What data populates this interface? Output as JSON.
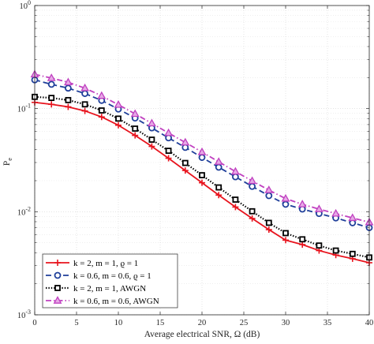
{
  "chart_data": {
    "type": "line",
    "xlabel": "Average electrical SNR,  Ω (dB)",
    "ylabel": "P",
    "ylabel_sub": "e",
    "xlim": [
      0,
      40
    ],
    "ylim": [
      0.001,
      1
    ],
    "yscale": "log",
    "grid": true,
    "legend_position": "bottom-left",
    "x_ticks": [
      0,
      5,
      10,
      15,
      20,
      25,
      30,
      35,
      40
    ],
    "y_ticks": [
      {
        "value": 1,
        "base": "10",
        "exp": "0"
      },
      {
        "value": 0.1,
        "base": "10",
        "exp": "-1"
      },
      {
        "value": 0.01,
        "base": "10",
        "exp": "-2"
      },
      {
        "value": 0.001,
        "base": "10",
        "exp": "-3"
      }
    ],
    "x": [
      0,
      2,
      4,
      6,
      8,
      10,
      12,
      14,
      16,
      18,
      20,
      22,
      24,
      26,
      28,
      30,
      32,
      34,
      36,
      38,
      40
    ],
    "series": [
      {
        "name": "k = 2, m = 1, ϱ = 1",
        "color": "#e8141e",
        "marker": "plus",
        "dash": "solid",
        "values": [
          0.115,
          0.11,
          0.104,
          0.095,
          0.083,
          0.069,
          0.055,
          0.043,
          0.033,
          0.0251,
          0.0191,
          0.0145,
          0.0111,
          0.0086,
          0.0067,
          0.0053,
          0.0048,
          0.0042,
          0.0038,
          0.0035,
          0.0032
        ]
      },
      {
        "name": "k = 0.6, m = 0.6, ϱ = 1",
        "color": "#1f3f9a",
        "marker": "circle",
        "dash": "dashed",
        "values": [
          0.19,
          0.172,
          0.158,
          0.14,
          0.12,
          0.099,
          0.081,
          0.065,
          0.052,
          0.042,
          0.0336,
          0.027,
          0.0218,
          0.0176,
          0.0143,
          0.0118,
          0.0106,
          0.0096,
          0.0087,
          0.0078,
          0.007
        ]
      },
      {
        "name": "k = 2, m = 1, AWGN",
        "color": "#000000",
        "marker": "square",
        "dash": "dotted",
        "values": [
          0.13,
          0.127,
          0.121,
          0.11,
          0.096,
          0.08,
          0.064,
          0.05,
          0.039,
          0.0297,
          0.0226,
          0.0172,
          0.0131,
          0.0101,
          0.0078,
          0.0062,
          0.0054,
          0.0047,
          0.0042,
          0.0039,
          0.0036
        ]
      },
      {
        "name": "k = 0.6, m = 0.6, AWGN",
        "color": "#c040c0",
        "marker": "triangle",
        "dash": "dashdot",
        "values": [
          0.215,
          0.198,
          0.18,
          0.158,
          0.133,
          0.109,
          0.089,
          0.072,
          0.058,
          0.047,
          0.0379,
          0.0305,
          0.0245,
          0.0199,
          0.0162,
          0.0134,
          0.0118,
          0.0106,
          0.0096,
          0.0087,
          0.0079
        ]
      }
    ]
  }
}
